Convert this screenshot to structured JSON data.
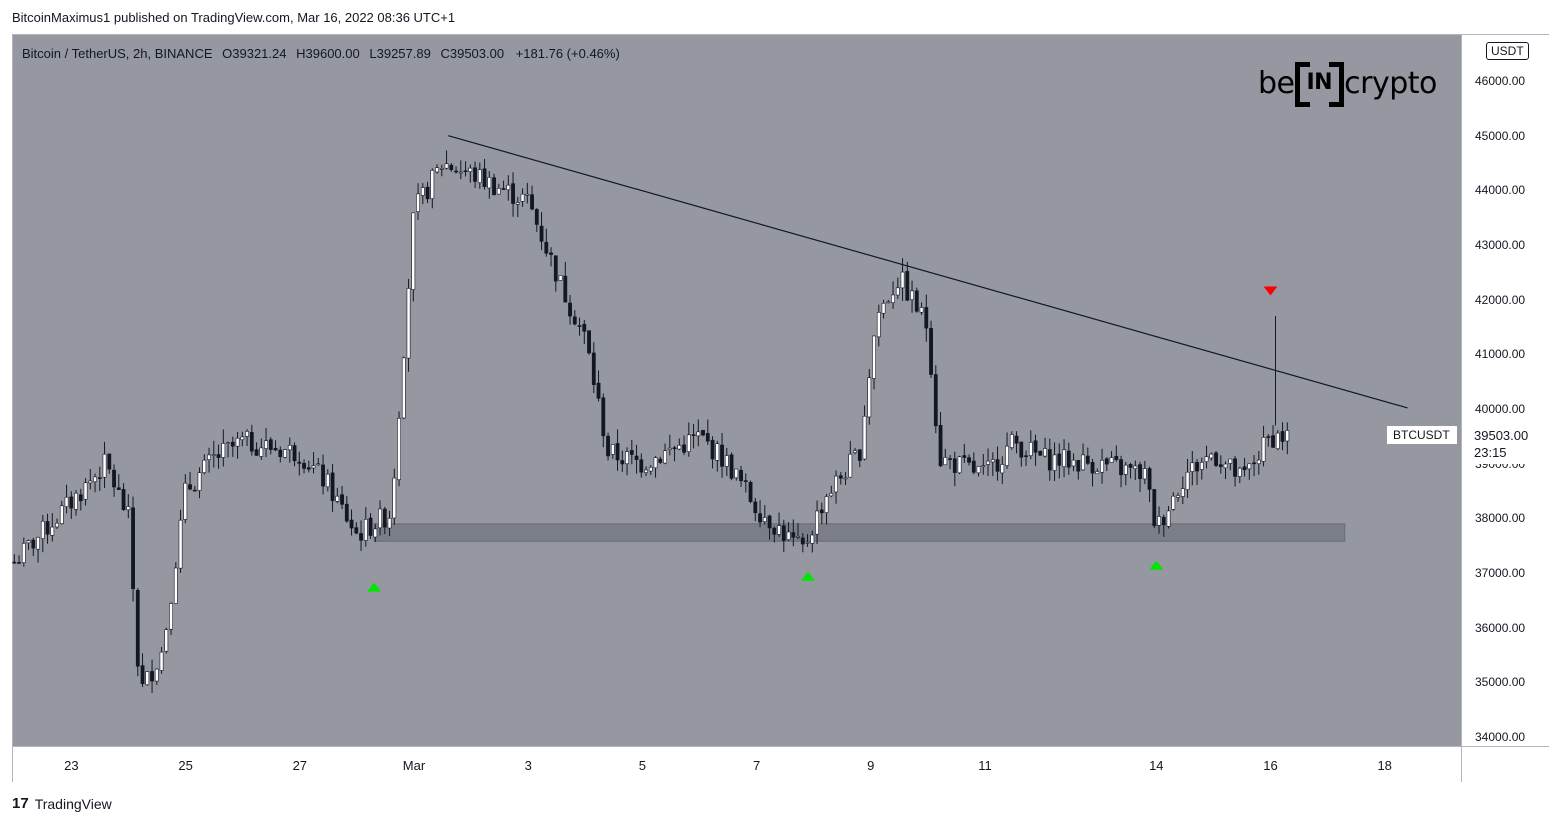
{
  "publish_line": "BitcoinMaximus1 published on TradingView.com, Mar 16, 2022 08:36 UTC+1",
  "legend": {
    "symbol": "Bitcoin / TetherUS, 2h, BINANCE",
    "o_label": "O",
    "o_value": "39321.24",
    "h_label": "H",
    "h_value": "39600.00",
    "l_label": "L",
    "l_value": "39257.89",
    "c_label": "C",
    "c_value": "39503.00",
    "change": "+181.76 (+0.46%)"
  },
  "currency": "USDT",
  "symbol_badge": "BTCUSDT",
  "last_price": "39503.00",
  "countdown": "23:15",
  "logo": {
    "left": "be",
    "middle": "IN",
    "right": "crypto"
  },
  "footer": {
    "mark": "17",
    "text": "TradingView"
  },
  "colors": {
    "plot_bg": "#9598a1",
    "support_band": "#7b7e87",
    "up_arrow": "#00e600",
    "down_arrow": "#ff0000",
    "trendline": "#131722"
  },
  "chart_data": {
    "type": "candlestick",
    "title": "Bitcoin / TetherUS, 2h, BINANCE",
    "y_ticks": [
      "46000.00",
      "45000.00",
      "44000.00",
      "43000.00",
      "42000.00",
      "41000.00",
      "40000.00",
      "39000.00",
      "38000.00",
      "37000.00",
      "36000.00",
      "35000.00",
      "34000.00"
    ],
    "ylim": [
      33750,
      46700
    ],
    "x_ticks": [
      "23",
      "25",
      "27",
      "Mar",
      "3",
      "5",
      "7",
      "9",
      "11",
      "14",
      "16",
      "18"
    ],
    "price_path": [
      {
        "date": "Feb 22",
        "price": 37200
      },
      {
        "date": "Feb 23",
        "price": 38300
      },
      {
        "date": "Feb 23.6",
        "price": 39000
      },
      {
        "date": "Feb 24",
        "price": 38000
      },
      {
        "date": "Feb 24.2",
        "price": 34800
      },
      {
        "date": "Feb 24.6",
        "price": 35600
      },
      {
        "date": "Feb 25",
        "price": 38500
      },
      {
        "date": "Feb 25.5",
        "price": 39100
      },
      {
        "date": "Feb 26",
        "price": 39400
      },
      {
        "date": "Feb 27",
        "price": 39200
      },
      {
        "date": "Feb 27.5",
        "price": 38600
      },
      {
        "date": "Feb 28",
        "price": 37700
      },
      {
        "date": "Feb 28.6",
        "price": 38100
      },
      {
        "date": "Mar 1",
        "price": 43600
      },
      {
        "date": "Mar 1.5",
        "price": 44500
      },
      {
        "date": "Mar 2",
        "price": 44300
      },
      {
        "date": "Mar 3",
        "price": 43800
      },
      {
        "date": "Mar 3.6",
        "price": 42200
      },
      {
        "date": "Mar 4",
        "price": 41300
      },
      {
        "date": "Mar 4.4",
        "price": 39200
      },
      {
        "date": "Mar 5",
        "price": 39000
      },
      {
        "date": "Mar 6",
        "price": 39500
      },
      {
        "date": "Mar 6.5",
        "price": 39000
      },
      {
        "date": "Mar 7",
        "price": 38200
      },
      {
        "date": "Mar 7.8",
        "price": 37400
      },
      {
        "date": "Mar 8.2",
        "price": 38400
      },
      {
        "date": "Mar 8.8",
        "price": 39200
      },
      {
        "date": "Mar 9.1",
        "price": 41700
      },
      {
        "date": "Mar 9.5",
        "price": 42400
      },
      {
        "date": "Mar 10",
        "price": 41500
      },
      {
        "date": "Mar 10.2",
        "price": 39100
      },
      {
        "date": "Mar 11",
        "price": 38800
      },
      {
        "date": "Mar 11.5",
        "price": 39400
      },
      {
        "date": "Mar 12",
        "price": 39100
      },
      {
        "date": "Mar 13",
        "price": 39000
      },
      {
        "date": "Mar 13.8",
        "price": 38800
      },
      {
        "date": "Mar 14",
        "price": 37800
      },
      {
        "date": "Mar 14.5",
        "price": 38800
      },
      {
        "date": "Mar 15",
        "price": 39200
      },
      {
        "date": "Mar 15.5",
        "price": 38700
      },
      {
        "date": "Mar 16",
        "price": 39500
      },
      {
        "date": "Mar 16.3",
        "price": 39503
      }
    ],
    "trendline": [
      {
        "date": "Mar 1.6",
        "price": 45000
      },
      {
        "date": "Mar 18.4",
        "price": 40020
      }
    ],
    "support_zone": {
      "from": "Feb 28.3",
      "to": "Mar 17.3",
      "low": 37580,
      "high": 37900
    },
    "markers": [
      {
        "type": "up",
        "date": "Feb 28.3",
        "price": 36750
      },
      {
        "type": "up",
        "date": "Mar 7.9",
        "price": 36950
      },
      {
        "type": "up",
        "date": "Mar 14",
        "price": 37150
      },
      {
        "type": "down",
        "date": "Mar 16",
        "price": 42150
      }
    ],
    "wick_high": {
      "date": "Mar 16",
      "price": 41700
    },
    "grid": false,
    "legend_position": "top-left"
  }
}
